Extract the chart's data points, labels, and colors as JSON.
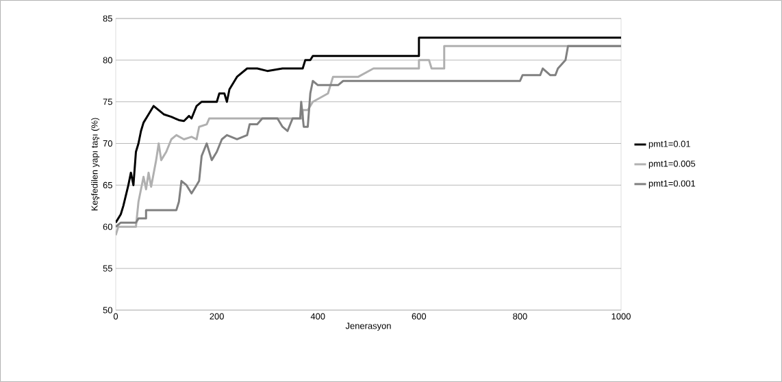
{
  "chart_data": {
    "type": "line",
    "xlabel": "Jenerasyon",
    "ylabel": "Keşfedilen  yapı taşı (%)",
    "xlim": [
      0,
      1000
    ],
    "ylim": [
      50,
      85
    ],
    "xticks": [
      0,
      200,
      400,
      600,
      800,
      1000
    ],
    "yticks": [
      50,
      55,
      60,
      65,
      70,
      75,
      80,
      85
    ],
    "grid": "y",
    "legend": "right",
    "line_style": "solid",
    "marker": "none",
    "series": [
      {
        "name": "pmt1=0.01",
        "color": "#000000",
        "x": [
          0,
          10,
          15,
          25,
          30,
          35,
          40,
          45,
          50,
          55,
          65,
          75,
          85,
          95,
          110,
          125,
          135,
          145,
          150,
          160,
          170,
          200,
          205,
          215,
          220,
          225,
          240,
          260,
          280,
          300,
          330,
          370,
          375,
          385,
          390,
          600,
          600,
          1000
        ],
        "values": [
          60.5,
          61.5,
          62.5,
          65,
          66.5,
          65,
          69,
          70,
          71.5,
          72.5,
          73.5,
          74.5,
          74,
          73.5,
          73.2,
          72.8,
          72.7,
          73.3,
          73,
          74.5,
          75,
          75,
          76,
          76,
          75,
          76.5,
          78,
          79,
          79,
          78.7,
          79,
          79,
          80,
          80,
          80.5,
          80.5,
          82.7,
          82.7
        ]
      },
      {
        "name": "pmt1=0.005",
        "color": "#b0b0b0",
        "x": [
          0,
          5,
          40,
          45,
          55,
          60,
          65,
          70,
          80,
          85,
          90,
          100,
          110,
          120,
          135,
          150,
          160,
          165,
          180,
          185,
          370,
          370,
          380,
          390,
          420,
          430,
          480,
          510,
          600,
          600,
          620,
          625,
          650,
          650,
          1000
        ],
        "values": [
          59,
          60,
          60,
          63,
          66,
          64.5,
          66.5,
          64.8,
          68,
          70,
          68,
          69,
          70.5,
          71,
          70.5,
          70.8,
          70.5,
          72,
          72.3,
          73,
          73,
          74,
          74,
          75,
          76,
          78,
          78,
          79,
          79,
          80,
          80,
          79,
          79,
          81.7,
          81.7
        ]
      },
      {
        "name": "pmt1=0.001",
        "color": "#808080",
        "x": [
          0,
          10,
          40,
          45,
          60,
          60,
          120,
          125,
          130,
          140,
          150,
          160,
          165,
          170,
          180,
          190,
          200,
          210,
          220,
          240,
          260,
          265,
          280,
          290,
          320,
          330,
          340,
          350,
          365,
          367,
          372,
          380,
          385,
          390,
          400,
          440,
          450,
          800,
          805,
          840,
          845,
          860,
          870,
          875,
          890,
          895,
          1000
        ],
        "values": [
          60,
          60.5,
          60.5,
          61,
          61,
          62,
          62,
          63,
          65.5,
          65,
          64,
          65,
          65.5,
          68.5,
          70,
          68,
          69,
          70.5,
          71,
          70.5,
          71,
          72.3,
          72.3,
          73,
          73,
          72,
          71.5,
          73,
          73,
          75,
          72,
          72,
          76,
          77.5,
          77,
          77,
          77.5,
          77.5,
          78.2,
          78.2,
          79,
          78.2,
          78.2,
          79,
          80,
          81.7,
          81.7
        ]
      }
    ]
  }
}
